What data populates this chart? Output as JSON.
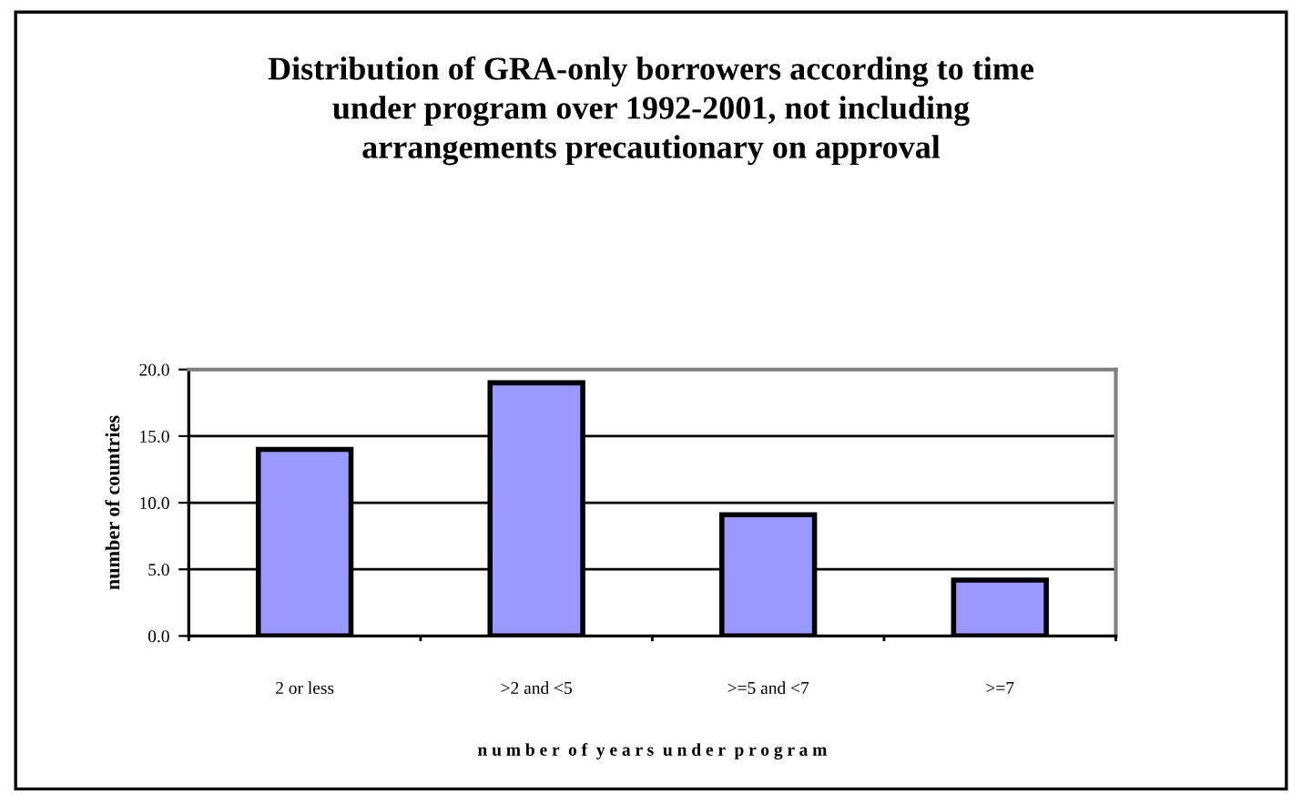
{
  "chart_data": {
    "type": "bar",
    "title": "Distribution of GRA-only borrowers according to time\nunder program over 1992-2001, not including\narrangements precautionary on approval",
    "xlabel": "n u m b e r  o f  y e a r s  u n d e r  p r o g r a m",
    "ylabel": "number of countries",
    "categories": [
      "2 or less",
      ">2 and <5",
      ">=5 and <7",
      ">=7"
    ],
    "values": [
      14,
      19,
      9.1,
      4.2
    ],
    "color": "#9999ff",
    "ylim": [
      0,
      20
    ],
    "yticks": [
      {
        "value": 0,
        "label": "0.0"
      },
      {
        "value": 5,
        "label": "5.0"
      },
      {
        "value": 10,
        "label": "10.0"
      },
      {
        "value": 15,
        "label": "15.0"
      },
      {
        "value": 20,
        "label": "20.0"
      }
    ],
    "grid": "y",
    "legend": false
  }
}
